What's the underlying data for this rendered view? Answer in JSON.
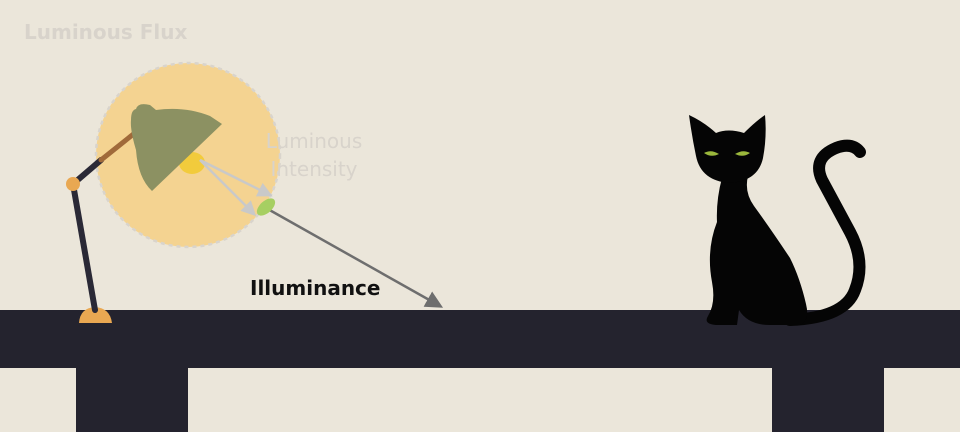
{
  "labels": {
    "luminous_flux": "Luminous Flux",
    "luminous_intensity_line1": "Luminous",
    "luminous_intensity_line2": "Intensity",
    "illuminance": "Illuminance"
  },
  "colors": {
    "background": "#ebe6da",
    "table": "#24232e",
    "flux_glow": "#f4d391",
    "flux_glow_border": "#d9d4cc",
    "lamp_shade": "#8c9162",
    "lamp_arm": "#2a2936",
    "lamp_joint": "#e9a852",
    "lamp_base": "#e9a852",
    "lamp_arm_upper": "#a06a3a",
    "bulb": "#f2cb3c",
    "intensity_patch": "#a6cf62",
    "faded_label": "#d8d3cb",
    "illuminance_label": "#111111",
    "arrow": "#6e6e6e",
    "faded_arrow": "#c9c9c9",
    "cat": "#050505",
    "cat_eyes": "#9bb83c"
  },
  "icons": {
    "lamp": "desk-lamp-icon",
    "cat": "cat-icon"
  }
}
